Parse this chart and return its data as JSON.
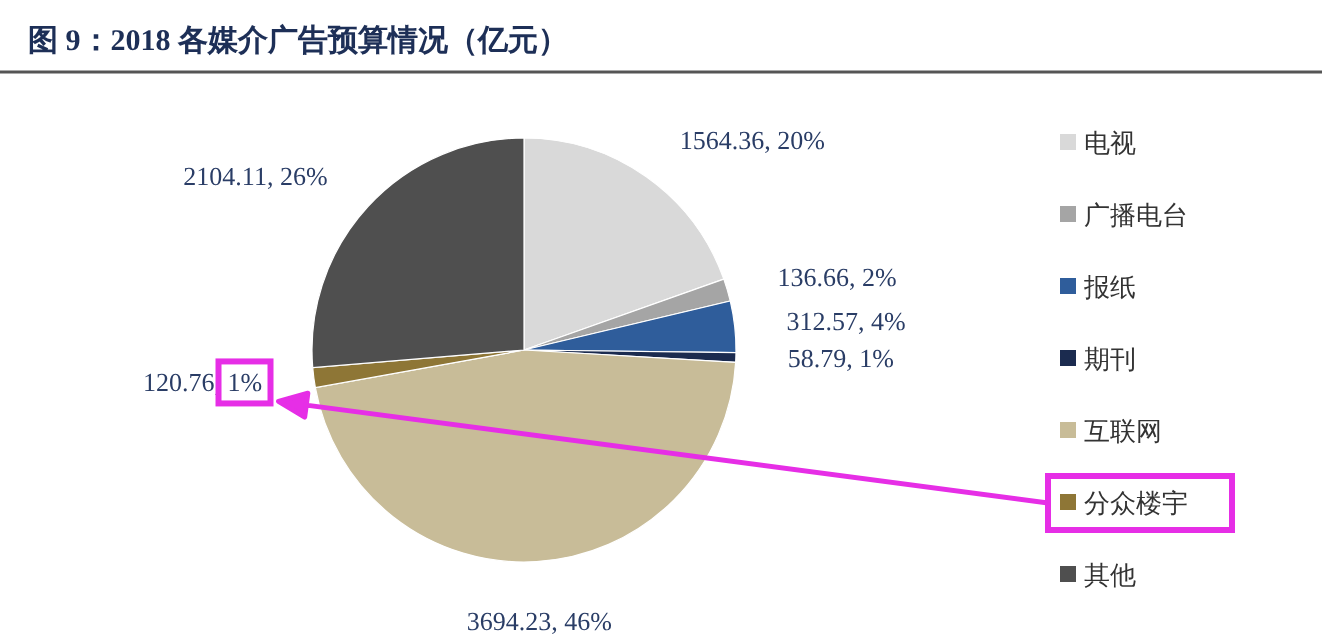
{
  "chart_data": {
    "type": "pie",
    "title": "图 9：2018 各媒介广告预算情况（亿元）",
    "categories": [
      "电视",
      "广播电台",
      "报纸",
      "期刊",
      "互联网",
      "分众楼宇",
      "其他"
    ],
    "values": [
      1564.36,
      136.66,
      312.57,
      58.79,
      3694.23,
      120.76,
      2104.11
    ],
    "value_labels": [
      "1564.36, 20%",
      "136.66, 2%",
      "312.57, 4%",
      "58.79, 1%",
      "3694.23, 46%",
      "120.76, 1%",
      "2104.11, 26%"
    ],
    "colors": [
      "#d9d9d9",
      "#a5a5a5",
      "#2f5d9b",
      "#1b2b4f",
      "#c8bc98",
      "#8e7636",
      "#4f4f4f"
    ],
    "legend": "right"
  }
}
